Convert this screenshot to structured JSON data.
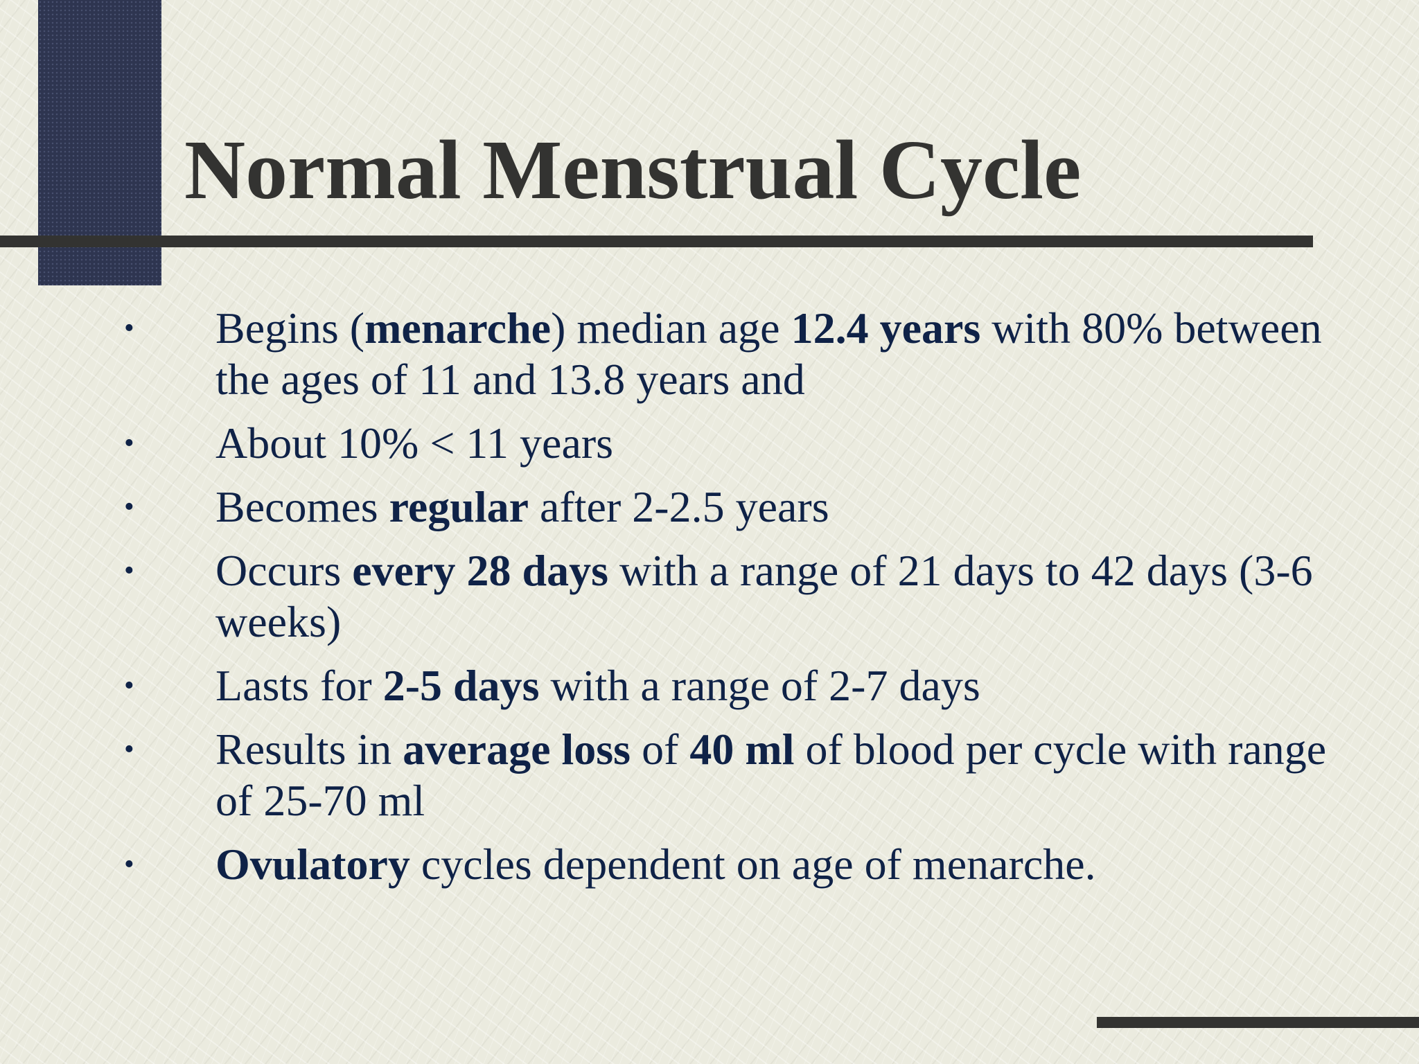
{
  "slide": {
    "title": "Normal Menstrual Cycle",
    "bullet_symbol": "•",
    "bullets": [
      {
        "parts": [
          {
            "text": "Begins (",
            "bold": false
          },
          {
            "text": "menarche",
            "bold": true
          },
          {
            "text": ") median age ",
            "bold": false
          },
          {
            "text": "12.4 years",
            "bold": true
          },
          {
            "text": " with 80% between the ages of 11 and 13.8 years and",
            "bold": false
          }
        ]
      },
      {
        "parts": [
          {
            "text": "About 10% < 11 years",
            "bold": false
          }
        ]
      },
      {
        "parts": [
          {
            "text": "Becomes ",
            "bold": false
          },
          {
            "text": "regular",
            "bold": true
          },
          {
            "text": " after 2-2.5 years",
            "bold": false
          }
        ]
      },
      {
        "parts": [
          {
            "text": "Occurs ",
            "bold": false
          },
          {
            "text": "every 28 days",
            "bold": true
          },
          {
            "text": " with a range of 21 days to 42 days (3-6 weeks)",
            "bold": false
          }
        ]
      },
      {
        "parts": [
          {
            "text": "Lasts for ",
            "bold": false
          },
          {
            "text": "2-5 days",
            "bold": true
          },
          {
            "text": " with a range of 2-7 days",
            "bold": false
          }
        ]
      },
      {
        "parts": [
          {
            "text": "Results in ",
            "bold": false
          },
          {
            "text": "average loss",
            "bold": true
          },
          {
            "text": " of ",
            "bold": false
          },
          {
            "text": "40 ml",
            "bold": true
          },
          {
            "text": " of blood per cycle with range of 25-70 ml",
            "bold": false
          }
        ]
      },
      {
        "parts": [
          {
            "text": "Ovulatory",
            "bold": true
          },
          {
            "text": " cycles dependent on age of menarche.",
            "bold": false
          }
        ]
      }
    ]
  },
  "colors": {
    "background": "#ebebdf",
    "title_text": "#333331",
    "body_text": "#0f2247",
    "accent_block": "#2e3550",
    "rules": "#333331"
  }
}
